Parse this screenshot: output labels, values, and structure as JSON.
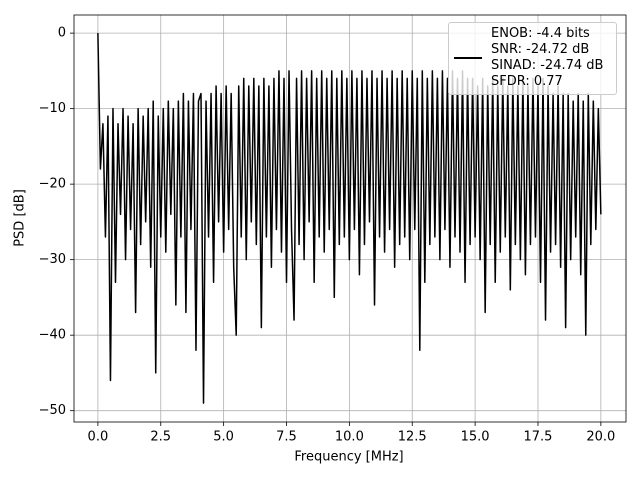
{
  "chart_data": {
    "type": "line",
    "xlabel": "Frequency [MHz]",
    "ylabel": "PSD [dB]",
    "x": [
      0,
      0.1,
      0.2,
      0.3,
      0.4,
      0.5,
      0.6,
      0.7,
      0.8,
      0.9,
      1,
      1.1,
      1.2,
      1.3,
      1.4,
      1.5,
      1.6,
      1.7,
      1.8,
      1.9,
      2,
      2.1,
      2.2,
      2.3,
      2.4,
      2.5,
      2.6,
      2.7,
      2.8,
      2.9,
      3,
      3.1,
      3.2,
      3.3,
      3.4,
      3.5,
      3.6,
      3.7,
      3.8,
      3.9,
      4,
      4.1,
      4.2,
      4.3,
      4.4,
      4.5,
      4.6,
      4.7,
      4.8,
      4.9,
      5,
      5.1,
      5.2,
      5.3,
      5.4,
      5.5,
      5.6,
      5.7,
      5.8,
      5.9,
      6,
      6.1,
      6.2,
      6.3,
      6.4,
      6.5,
      6.6,
      6.7,
      6.8,
      6.9,
      7,
      7.1,
      7.2,
      7.3,
      7.4,
      7.5,
      7.6,
      7.7,
      7.8,
      7.9,
      8,
      8.1,
      8.2,
      8.3,
      8.4,
      8.5,
      8.6,
      8.7,
      8.8,
      8.9,
      9,
      9.1,
      9.2,
      9.3,
      9.4,
      9.5,
      9.6,
      9.7,
      9.8,
      9.9,
      10,
      10.1,
      10.2,
      10.3,
      10.4,
      10.5,
      10.6,
      10.7,
      10.8,
      10.9,
      11,
      11.1,
      11.2,
      11.3,
      11.4,
      11.5,
      11.6,
      11.7,
      11.8,
      11.9,
      12,
      12.1,
      12.2,
      12.3,
      12.4,
      12.5,
      12.6,
      12.7,
      12.8,
      12.9,
      13,
      13.1,
      13.2,
      13.3,
      13.4,
      13.5,
      13.6,
      13.7,
      13.8,
      13.9,
      14,
      14.1,
      14.2,
      14.3,
      14.4,
      14.5,
      14.6,
      14.7,
      14.8,
      14.9,
      15,
      15.1,
      15.2,
      15.3,
      15.4,
      15.5,
      15.6,
      15.7,
      15.8,
      15.9,
      16,
      16.1,
      16.2,
      16.3,
      16.4,
      16.5,
      16.6,
      16.7,
      16.8,
      16.9,
      17,
      17.1,
      17.2,
      17.3,
      17.4,
      17.5,
      17.6,
      17.7,
      17.8,
      17.9,
      18,
      18.1,
      18.2,
      18.3,
      18.4,
      18.5,
      18.6,
      18.7,
      18.8,
      18.9,
      19,
      19.1,
      19.2,
      19.3,
      19.4,
      19.5,
      19.6,
      19.7,
      19.8,
      19.9,
      20
    ],
    "series": [
      {
        "name": "ENOB: -4.4 bits\nSNR: -24.72 dB\nSINAD: -24.74 dB\nSFDR: 0.77",
        "color": "#000000",
        "values": [
          0,
          -18,
          -12,
          -27,
          -11,
          -46,
          -10,
          -33,
          -12,
          -24,
          -10,
          -30,
          -11,
          -26,
          -12,
          -37,
          -10,
          -28,
          -11,
          -25,
          -10,
          -31,
          -9,
          -45,
          -11,
          -27,
          -10,
          -29,
          -9,
          -24,
          -10,
          -36,
          -9,
          -27,
          -8,
          -37,
          -9,
          -26,
          -8,
          -42,
          -9,
          -8,
          -49,
          -9,
          -27,
          -8,
          -33,
          -7,
          -25,
          -8,
          -29,
          -7,
          -26,
          -8,
          -31,
          -40,
          -7,
          -27,
          -6,
          -30,
          -7,
          -25,
          -6,
          -28,
          -7,
          -39,
          -6,
          -27,
          -7,
          -31,
          -6,
          -26,
          -5,
          -29,
          -6,
          -33,
          -5,
          -26,
          -38,
          -6,
          -28,
          -5,
          -30,
          -6,
          -25,
          -5,
          -33,
          -6,
          -27,
          -5,
          -29,
          -6,
          -26,
          -5,
          -35,
          -6,
          -28,
          -5,
          -27,
          -6,
          -30,
          -5,
          -26,
          -6,
          -32,
          -5,
          -28,
          -6,
          -25,
          -5,
          -36,
          -6,
          -27,
          -5,
          -29,
          -6,
          -26,
          -5,
          -31,
          -6,
          -28,
          -5,
          -27,
          -6,
          -30,
          -5,
          -26,
          -6,
          -42,
          -5,
          -33,
          -6,
          -28,
          -5,
          -27,
          -6,
          -30,
          -5,
          -26,
          -6,
          -31,
          -5,
          -27,
          -6,
          -29,
          -5,
          -33,
          -6,
          -28,
          -6,
          -27,
          -7,
          -30,
          -6,
          -37,
          -7,
          -28,
          -6,
          -33,
          -7,
          -29,
          -6,
          -27,
          -7,
          -34,
          -6,
          -28,
          -7,
          -30,
          -6,
          -32,
          -7,
          -28,
          -6,
          -27,
          -7,
          -33,
          -6,
          -38,
          -7,
          -29,
          -8,
          -28,
          -7,
          -31,
          -8,
          -39,
          -8,
          -30,
          -9,
          -27,
          -8,
          -32,
          -9,
          -40,
          -8,
          -28,
          -9,
          -26,
          -10,
          -24
        ]
      }
    ],
    "xlim": [
      -0.95,
      21.0
    ],
    "ylim": [
      -51.5,
      2.4
    ],
    "xticks": [
      {
        "value": 0,
        "label": "0.0"
      },
      {
        "value": 2.5,
        "label": "2.5"
      },
      {
        "value": 5,
        "label": "5.0"
      },
      {
        "value": 7.5,
        "label": "7.5"
      },
      {
        "value": 10,
        "label": "10.0"
      },
      {
        "value": 12.5,
        "label": "12.5"
      },
      {
        "value": 15,
        "label": "15.0"
      },
      {
        "value": 17.5,
        "label": "17.5"
      },
      {
        "value": 20,
        "label": "20.0"
      }
    ],
    "yticks": [
      0,
      {
        "value": -10,
        "label": "−10"
      },
      {
        "value": -20,
        "label": "−20"
      },
      {
        "value": -30,
        "label": "−30"
      },
      {
        "value": -40,
        "label": "−40"
      },
      {
        "value": -50,
        "label": "−50"
      }
    ],
    "grid": true,
    "legend": "upper right"
  }
}
